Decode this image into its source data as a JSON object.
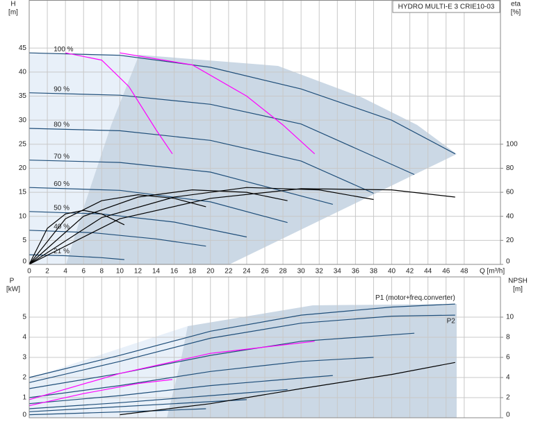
{
  "chart_data": [
    {
      "type": "line",
      "title": "HYDRO MULTI-E 3 CRIE10-03",
      "ylabel": "H",
      "yunit": "[m]",
      "y2label": "eta",
      "y2unit": "[%]",
      "xlabel": "Q [m³/h]",
      "xlim": [
        0,
        52
      ],
      "xticks": [
        0,
        2,
        4,
        6,
        8,
        10,
        12,
        14,
        16,
        18,
        20,
        22,
        24,
        26,
        28,
        30,
        32,
        34,
        36,
        38,
        40,
        42,
        44,
        46,
        48
      ],
      "ylim": [
        0,
        55
      ],
      "yticks": [
        0,
        5,
        10,
        15,
        20,
        25,
        30,
        35,
        40,
        45
      ],
      "y2lim": [
        0,
        220
      ],
      "y2ticks": [
        0,
        20,
        40,
        60,
        80,
        100
      ],
      "grid": true,
      "series": [
        {
          "name": "100 %",
          "color": "#1f4e79",
          "x": [
            0,
            10,
            20,
            30,
            40,
            47
          ],
          "values": [
            44,
            43.5,
            41,
            36.5,
            30,
            23
          ]
        },
        {
          "name": "90 %",
          "color": "#1f4e79",
          "x": [
            0,
            10,
            20,
            30,
            42.5
          ],
          "values": [
            35.7,
            35.2,
            33.3,
            29.2,
            18.7
          ]
        },
        {
          "name": "80 %",
          "color": "#1f4e79",
          "x": [
            0,
            10,
            20,
            30,
            38
          ],
          "values": [
            28.3,
            27.8,
            25.8,
            21.5,
            14.8
          ]
        },
        {
          "name": "70 %",
          "color": "#1f4e79",
          "x": [
            0,
            10,
            20,
            33.5
          ],
          "values": [
            21.7,
            21.2,
            19.2,
            12.5
          ]
        },
        {
          "name": "60 %",
          "color": "#1f4e79",
          "x": [
            0,
            10,
            20,
            28.5
          ],
          "values": [
            16,
            15.4,
            13,
            8.7
          ]
        },
        {
          "name": "50 %",
          "color": "#1f4e79",
          "x": [
            0,
            8,
            16,
            24
          ],
          "values": [
            11,
            10.5,
            8.8,
            5.7
          ]
        },
        {
          "name": "40 %",
          "color": "#1f4e79",
          "x": [
            0,
            7,
            14,
            19.5
          ],
          "values": [
            7.1,
            6.6,
            5.3,
            3.8
          ]
        },
        {
          "name": "21 %",
          "color": "#1f4e79",
          "x": [
            0,
            4,
            8,
            10.5
          ],
          "values": [
            2,
            1.8,
            1.4,
            1
          ]
        },
        {
          "color": "#ff00ff",
          "x": [
            4,
            8,
            11,
            14,
            15.8
          ],
          "values": [
            44,
            42.5,
            37,
            28,
            23
          ]
        },
        {
          "color": "#ff00ff",
          "x": [
            10,
            18,
            24,
            28,
            31.5
          ],
          "values": [
            44,
            41.5,
            35,
            29,
            23
          ]
        },
        {
          "color": "#000000",
          "axis": "y2",
          "x": [
            0,
            10,
            20,
            30,
            40,
            47
          ],
          "values": [
            0,
            38,
            55,
            63,
            62,
            56
          ]
        },
        {
          "color": "#000000",
          "axis": "y2",
          "x": [
            0,
            8,
            16,
            24,
            32,
            38
          ],
          "values": [
            0,
            39,
            56,
            64,
            62,
            54
          ]
        },
        {
          "color": "#000000",
          "axis": "y2",
          "x": [
            0,
            6,
            12,
            18,
            24,
            28.5
          ],
          "values": [
            0,
            40,
            56,
            62,
            60,
            53
          ]
        },
        {
          "color": "#000000",
          "axis": "y2",
          "x": [
            0,
            4,
            8,
            12,
            16,
            19.5
          ],
          "values": [
            0,
            38,
            53,
            58,
            55,
            48
          ]
        },
        {
          "color": "#000000",
          "axis": "y2",
          "x": [
            0,
            2,
            4,
            6,
            8,
            10.5
          ],
          "values": [
            0,
            30,
            42,
            45,
            42,
            33
          ]
        }
      ]
    },
    {
      "type": "line",
      "ylabel": "P",
      "yunit": "[kW]",
      "y2label": "NPSH",
      "y2unit": "[m]",
      "xlim": [
        0,
        52
      ],
      "xticks": [
        0,
        2,
        4,
        6,
        8,
        10,
        12,
        14,
        16,
        18,
        20,
        22,
        24,
        26,
        28,
        30,
        32,
        34,
        36,
        38,
        40,
        42,
        44,
        46,
        48
      ],
      "ylim": [
        0,
        7
      ],
      "yticks": [
        0,
        1,
        2,
        3,
        4,
        5
      ],
      "y2lim": [
        0,
        14
      ],
      "y2ticks": [
        0,
        2,
        4,
        6,
        8,
        10
      ],
      "grid": true,
      "series": [
        {
          "name": "P1 (motor+freq.converter)",
          "color": "#1f4e79",
          "x": [
            0,
            10,
            20,
            30,
            40,
            47
          ],
          "values": [
            2,
            3.1,
            4.3,
            5.1,
            5.5,
            5.65
          ]
        },
        {
          "name": "P2",
          "color": "#1f4e79",
          "x": [
            0,
            10,
            20,
            30,
            40,
            47
          ],
          "values": [
            1.75,
            2.8,
            3.95,
            4.7,
            5.05,
            5.1
          ]
        },
        {
          "color": "#1f4e79",
          "x": [
            0,
            10,
            20,
            30,
            42.5
          ],
          "values": [
            1.45,
            2.2,
            3.1,
            3.8,
            4.2
          ]
        },
        {
          "color": "#1f4e79",
          "x": [
            0,
            10,
            20,
            30,
            38
          ],
          "values": [
            1,
            1.6,
            2.3,
            2.8,
            3
          ]
        },
        {
          "color": "#1f4e79",
          "x": [
            0,
            10,
            20,
            33.5
          ],
          "values": [
            0.7,
            1.1,
            1.6,
            2.1
          ]
        },
        {
          "color": "#1f4e79",
          "x": [
            0,
            10,
            20,
            28.5
          ],
          "values": [
            0.45,
            0.75,
            1.1,
            1.4
          ]
        },
        {
          "color": "#1f4e79",
          "x": [
            0,
            8,
            16,
            24
          ],
          "values": [
            0.3,
            0.5,
            0.7,
            0.9
          ]
        },
        {
          "color": "#1f4e79",
          "x": [
            0,
            7,
            14,
            19.5
          ],
          "values": [
            0.15,
            0.25,
            0.35,
            0.45
          ]
        },
        {
          "color": "#ff00ff",
          "x": [
            0,
            10,
            20,
            31.5
          ],
          "values": [
            0.9,
            2.2,
            3.2,
            3.8
          ]
        },
        {
          "color": "#ff00ff",
          "x": [
            0,
            6,
            12,
            15.8
          ],
          "values": [
            0.6,
            1.2,
            1.7,
            1.9
          ]
        },
        {
          "color": "#000000",
          "axis": "y2",
          "x": [
            10,
            20,
            30,
            40,
            47
          ],
          "values": [
            0.3,
            1.4,
            2.9,
            4.3,
            5.5
          ]
        }
      ]
    }
  ]
}
